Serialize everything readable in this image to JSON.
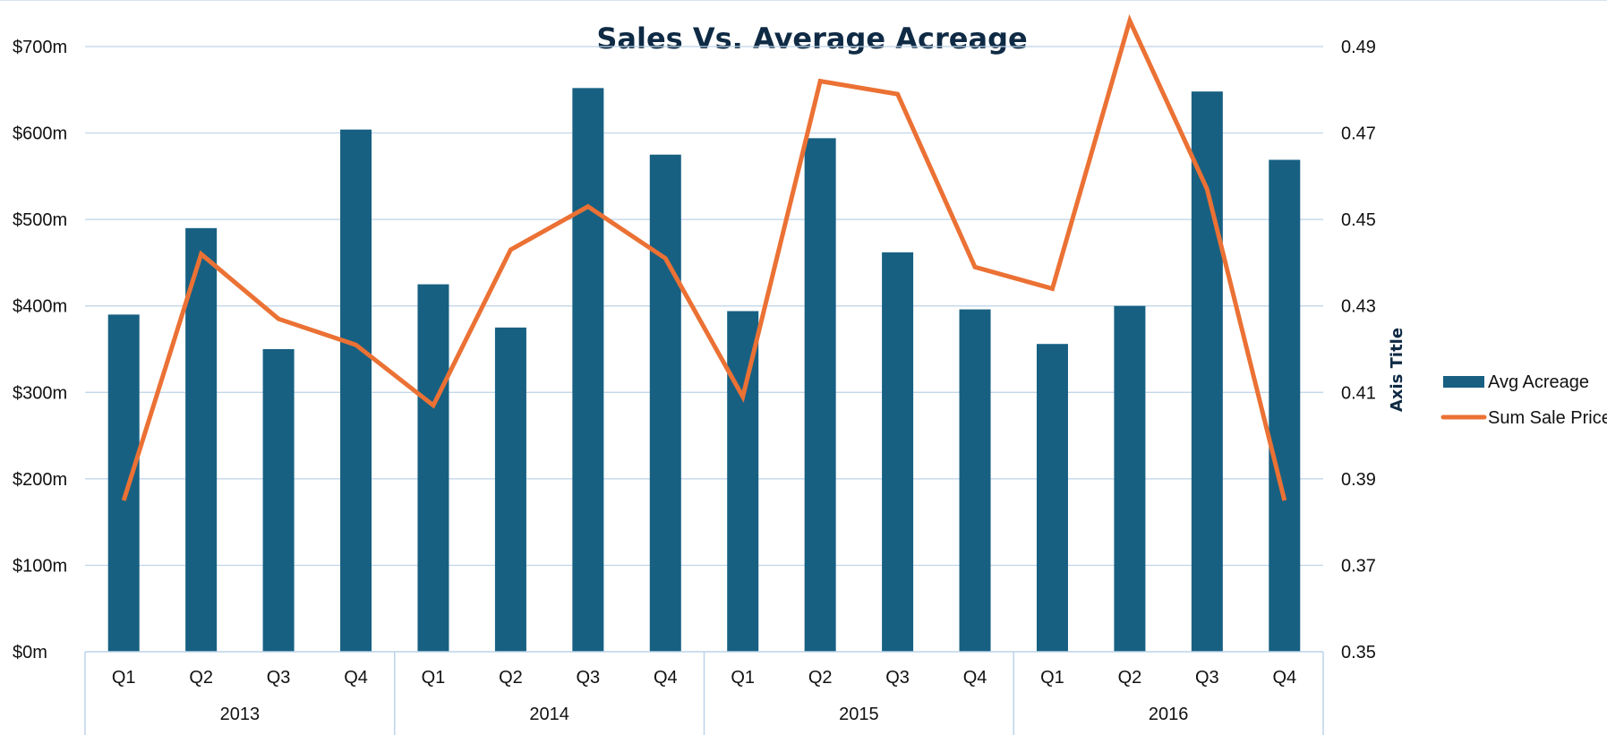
{
  "chart_data": {
    "type": "bar",
    "title": "Sales Vs. Average Acreage",
    "groups": [
      "2013",
      "2014",
      "2015",
      "2016"
    ],
    "categories": [
      "Q1",
      "Q2",
      "Q3",
      "Q4",
      "Q1",
      "Q2",
      "Q3",
      "Q4",
      "Q1",
      "Q2",
      "Q3",
      "Q4",
      "Q1",
      "Q2",
      "Q3",
      "Q4"
    ],
    "series": [
      {
        "name": "Avg Acreage",
        "type": "bar",
        "axis": "left",
        "color": "#176082",
        "values": [
          390,
          490,
          350,
          604,
          425,
          375,
          652,
          575,
          394,
          594,
          462,
          396,
          356,
          400,
          648,
          569
        ]
      },
      {
        "name": "Sum Sale Price",
        "type": "line",
        "axis": "right",
        "color": "#eb7134",
        "values": [
          0.385,
          0.442,
          0.427,
          0.421,
          0.407,
          0.443,
          0.453,
          0.441,
          0.409,
          0.482,
          0.479,
          0.439,
          0.434,
          0.496,
          0.457,
          0.385
        ]
      }
    ],
    "y_left": {
      "ticks": [
        "$0m",
        "$100m",
        "$200m",
        "$300m",
        "$400m",
        "$500m",
        "$600m",
        "$700m"
      ],
      "min": 0,
      "max": 700
    },
    "y_right": {
      "ticks": [
        "0.35",
        "0.37",
        "0.39",
        "0.41",
        "0.43",
        "0.45",
        "0.47",
        "0.49"
      ],
      "min": 0.35,
      "max": 0.49,
      "title": "Axis Title"
    },
    "grid": true,
    "legend_position": "right"
  }
}
